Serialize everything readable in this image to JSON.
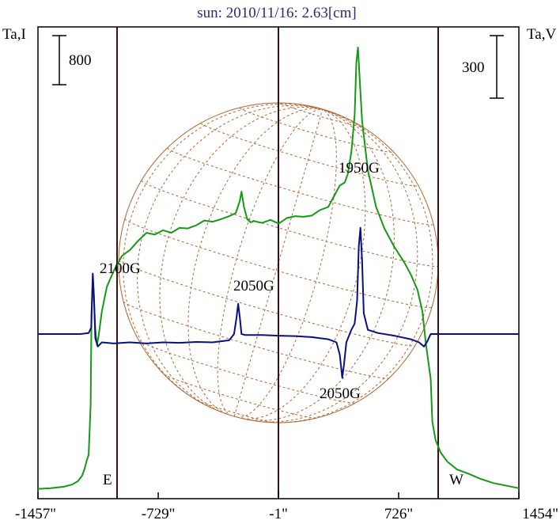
{
  "chart_data": {
    "type": "line",
    "title": "sun: 2010/11/16: 2.63[cm]",
    "left_axis_label": "Ta,I",
    "right_axis_label": "Ta,V",
    "scale_bars": {
      "left": "800",
      "right": "300"
    },
    "x_ticks": [
      {
        "value": -1457,
        "label": "-1457\""
      },
      {
        "value": -729,
        "label": "-729\""
      },
      {
        "value": -1,
        "label": "-1\""
      },
      {
        "value": 726,
        "label": "726\""
      },
      {
        "value": 1454,
        "label": "1454\""
      }
    ],
    "limb_labels": {
      "east": "E",
      "west": "W"
    },
    "xlim": [
      -1457,
      1454
    ],
    "colors": {
      "stokes_i": "#159a15",
      "stokes_v": "#0a1080",
      "disk": "#b06530",
      "markers": "#3a1010",
      "frame": "#000000"
    },
    "series": [
      {
        "color": "#159a15",
        "points": [
          [
            -1457,
            5
          ],
          [
            -1380,
            15
          ],
          [
            -1300,
            40
          ],
          [
            -1250,
            75
          ],
          [
            -1215,
            130
          ],
          [
            -1190,
            220
          ],
          [
            -1175,
            330
          ],
          [
            -1160,
            480
          ],
          [
            -1150,
            560
          ],
          [
            -1138,
            1380
          ],
          [
            -1133,
            2860
          ],
          [
            -1125,
            3450
          ],
          [
            -1120,
            3200
          ],
          [
            -1110,
            2600
          ],
          [
            -1100,
            2350
          ],
          [
            -1090,
            2500
          ],
          [
            -1070,
            2900
          ],
          [
            -1040,
            3300
          ],
          [
            -1000,
            3550
          ],
          [
            -950,
            3800
          ],
          [
            -900,
            3900
          ],
          [
            -850,
            4050
          ],
          [
            -800,
            4180
          ],
          [
            -750,
            4150
          ],
          [
            -700,
            4220
          ],
          [
            -650,
            4180
          ],
          [
            -600,
            4260
          ],
          [
            -550,
            4250
          ],
          [
            -500,
            4300
          ],
          [
            -450,
            4380
          ],
          [
            -400,
            4360
          ],
          [
            -350,
            4400
          ],
          [
            -300,
            4450
          ],
          [
            -260,
            4500
          ],
          [
            -235,
            4700
          ],
          [
            -225,
            4850
          ],
          [
            -210,
            4600
          ],
          [
            -190,
            4400
          ],
          [
            -170,
            4350
          ],
          [
            -150,
            4370
          ],
          [
            -100,
            4340
          ],
          [
            -50,
            4390
          ],
          [
            0,
            4330
          ],
          [
            50,
            4420
          ],
          [
            100,
            4450
          ],
          [
            150,
            4440
          ],
          [
            200,
            4460
          ],
          [
            250,
            4550
          ],
          [
            300,
            4600
          ],
          [
            330,
            4750
          ],
          [
            370,
            4950
          ],
          [
            400,
            5000
          ],
          [
            420,
            5150
          ],
          [
            440,
            5500
          ],
          [
            460,
            6100
          ],
          [
            470,
            6950
          ],
          [
            480,
            7200
          ],
          [
            490,
            6700
          ],
          [
            505,
            6000
          ],
          [
            540,
            5200
          ],
          [
            590,
            4600
          ],
          [
            640,
            4250
          ],
          [
            700,
            3950
          ],
          [
            760,
            3700
          ],
          [
            800,
            3500
          ],
          [
            840,
            3250
          ],
          [
            870,
            2900
          ],
          [
            890,
            2400
          ],
          [
            905,
            2100
          ],
          [
            920,
            1800
          ],
          [
            930,
            1100
          ],
          [
            950,
            800
          ],
          [
            980,
            600
          ],
          [
            1020,
            450
          ],
          [
            1080,
            320
          ],
          [
            1150,
            250
          ],
          [
            1220,
            170
          ],
          [
            1300,
            100
          ],
          [
            1380,
            55
          ],
          [
            1454,
            15
          ]
        ]
      },
      {
        "color": "#0a1080",
        "points": [
          [
            -1457,
            0
          ],
          [
            -1200,
            0
          ],
          [
            -1150,
            5
          ],
          [
            -1135,
            30
          ],
          [
            -1125,
            290
          ],
          [
            -1118,
            180
          ],
          [
            -1110,
            -20
          ],
          [
            -1095,
            -60
          ],
          [
            -1070,
            -40
          ],
          [
            -1000,
            -45
          ],
          [
            -900,
            -40
          ],
          [
            -800,
            -45
          ],
          [
            -700,
            -40
          ],
          [
            -600,
            -42
          ],
          [
            -500,
            -38
          ],
          [
            -400,
            -40
          ],
          [
            -300,
            -30
          ],
          [
            -270,
            0
          ],
          [
            -255,
            80
          ],
          [
            -245,
            145
          ],
          [
            -235,
            80
          ],
          [
            -225,
            0
          ],
          [
            -200,
            -5
          ],
          [
            -100,
            -5
          ],
          [
            0,
            -8
          ],
          [
            100,
            -10
          ],
          [
            200,
            -15
          ],
          [
            300,
            -25
          ],
          [
            350,
            -40
          ],
          [
            370,
            -100
          ],
          [
            385,
            -210
          ],
          [
            395,
            -150
          ],
          [
            410,
            -40
          ],
          [
            440,
            20
          ],
          [
            460,
            50
          ],
          [
            475,
            160
          ],
          [
            485,
            420
          ],
          [
            495,
            510
          ],
          [
            505,
            350
          ],
          [
            515,
            100
          ],
          [
            540,
            20
          ],
          [
            600,
            5
          ],
          [
            700,
            -8
          ],
          [
            800,
            -25
          ],
          [
            850,
            -40
          ],
          [
            880,
            -60
          ],
          [
            900,
            -35
          ],
          [
            920,
            0
          ],
          [
            1000,
            0
          ],
          [
            1100,
            0
          ],
          [
            1200,
            0
          ],
          [
            1300,
            0
          ],
          [
            1454,
            0
          ]
        ]
      }
    ],
    "annotations": [
      "2100G",
      "2050G",
      "1950G",
      "2050G"
    ]
  }
}
